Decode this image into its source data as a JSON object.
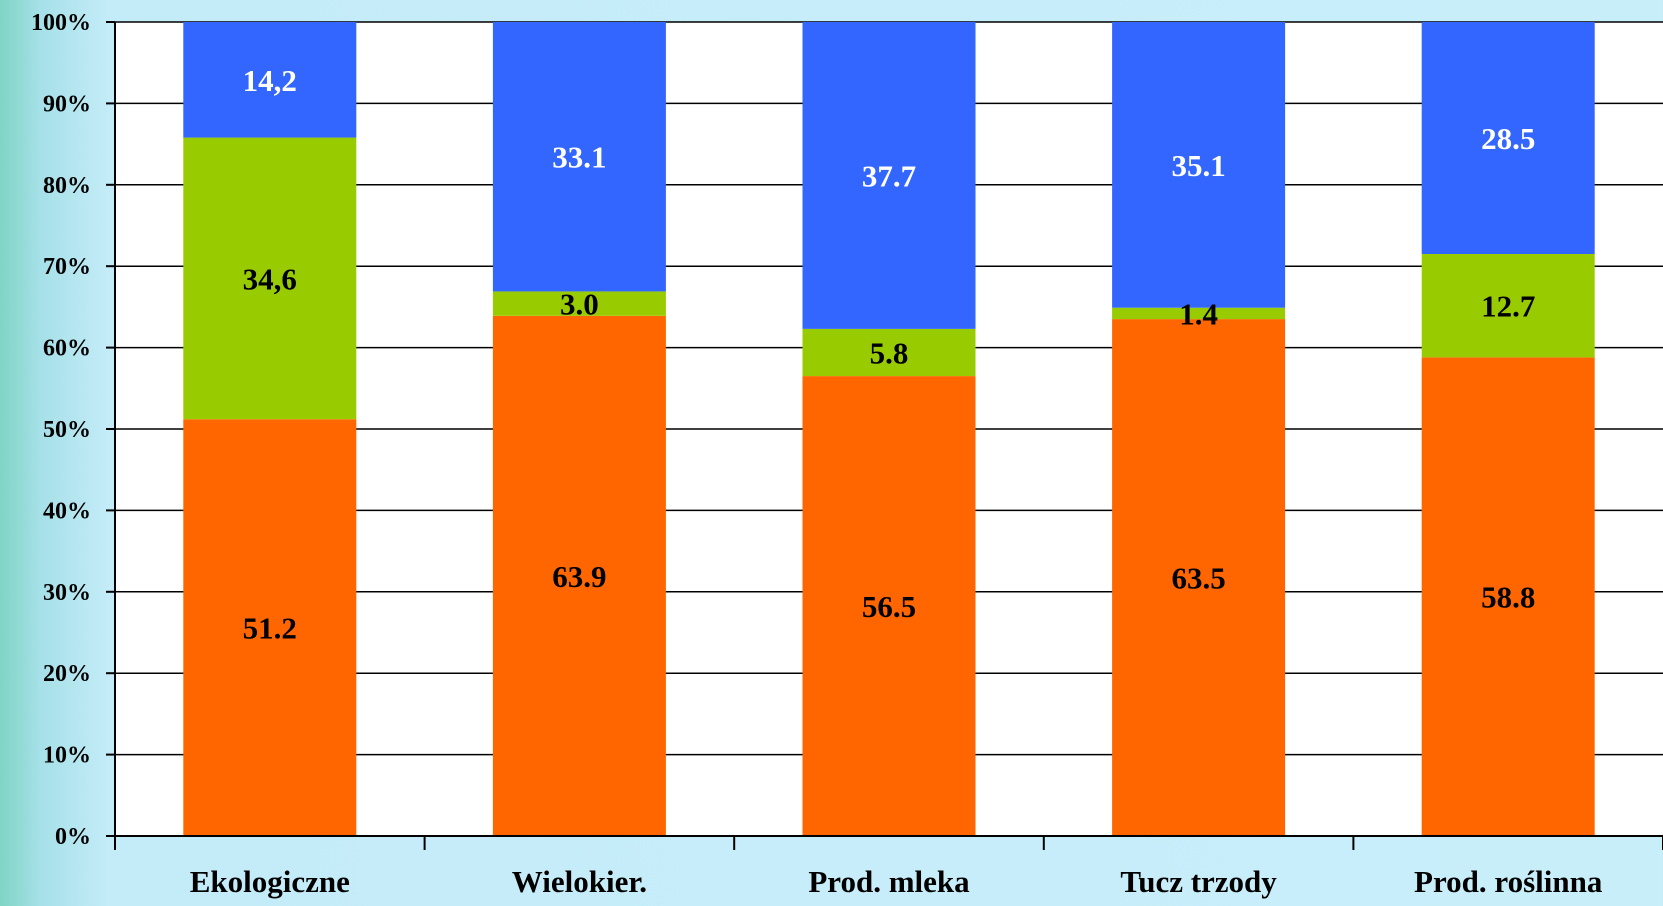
{
  "chart_data": {
    "type": "bar",
    "stacked": true,
    "normalized": true,
    "categories": [
      "Ekologiczne",
      "Wielokier.",
      "Prod. mleka",
      "Tucz trzody",
      "Prod. roślinna"
    ],
    "series": [
      {
        "color": "#ff6600",
        "label_color": "#000000",
        "values": [
          51.2,
          63.9,
          56.5,
          63.5,
          58.8
        ],
        "labels": [
          "51.2",
          "63.9",
          "56.5",
          "63.5",
          "58.8"
        ]
      },
      {
        "color": "#99cc00",
        "label_color": "#000000",
        "values": [
          34.6,
          3.0,
          5.8,
          1.4,
          12.7
        ],
        "labels": [
          "34,6",
          "3.0",
          "5.8",
          "1.4",
          "12.7"
        ]
      },
      {
        "color": "#3366ff",
        "label_color": "#ffffff",
        "values": [
          14.2,
          33.1,
          37.7,
          35.1,
          28.5
        ],
        "labels": [
          "14,2",
          "33.1",
          "37.7",
          "35.1",
          "28.5"
        ]
      }
    ],
    "yticks": [
      "0%",
      "10%",
      "20%",
      "30%",
      "40%",
      "50%",
      "60%",
      "70%",
      "80%",
      "90%",
      "100%"
    ],
    "ylim": [
      0,
      100
    ],
    "grid": true,
    "legend": "none",
    "plot_background": "#ffffff"
  }
}
